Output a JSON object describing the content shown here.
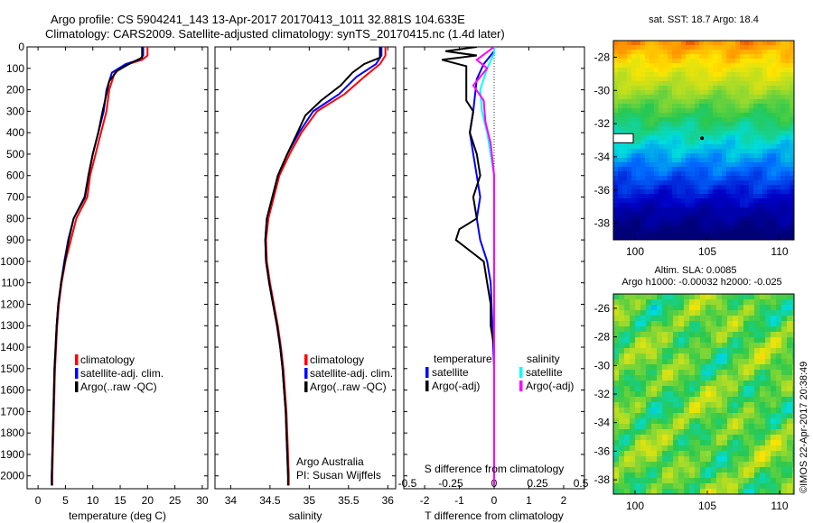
{
  "header": {
    "line1": "Argo profile: CS 5904241_143 13-Apr-2017 20170413_1011 32.881S 104.633E",
    "line2": "Climatology: CARS2009. Satellite-adjusted climatology: synTS_20170415.nc (1.4d later)"
  },
  "footer_credit": "©IMOS 22-Apr-2017 20:38:49",
  "colors": {
    "climatology": "#ff0000",
    "satellite": "#0000ff",
    "argo": "#000000",
    "sal_satellite": "#00ffff",
    "sal_argo": "#ff00ff"
  },
  "chart_data": [
    {
      "type": "line",
      "panel": "temperature",
      "xlabel": "temperature (deg C)",
      "ylabel": "",
      "xlim": [
        -2,
        31
      ],
      "ylim": [
        2060,
        0
      ],
      "xticks": [
        0,
        5,
        10,
        15,
        20,
        25,
        30
      ],
      "yticks": [
        0,
        100,
        200,
        300,
        400,
        500,
        600,
        700,
        800,
        900,
        1000,
        1100,
        1200,
        1300,
        1400,
        1500,
        1600,
        1700,
        1800,
        1900,
        2000
      ],
      "legend": [
        "climatology",
        "satellite-adj. clim.",
        "Argo(..raw -QC)"
      ],
      "series": [
        {
          "name": "climatology",
          "color": "#ff0000",
          "points": [
            [
              20,
              0
            ],
            [
              20,
              40
            ],
            [
              19,
              60
            ],
            [
              16.5,
              80
            ],
            [
              14,
              120
            ],
            [
              13,
              200
            ],
            [
              12.5,
              300
            ],
            [
              11.5,
              400
            ],
            [
              10.5,
              500
            ],
            [
              9.5,
              600
            ],
            [
              9,
              700
            ],
            [
              7,
              800
            ],
            [
              6,
              900
            ],
            [
              5,
              1000
            ],
            [
              4.3,
              1100
            ],
            [
              3.8,
              1200
            ],
            [
              3.5,
              1300
            ],
            [
              3.3,
              1400
            ],
            [
              3.1,
              1500
            ],
            [
              3,
              1600
            ],
            [
              2.9,
              1700
            ],
            [
              2.8,
              1800
            ],
            [
              2.7,
              1900
            ],
            [
              2.6,
              2000
            ],
            [
              2.6,
              2045
            ]
          ]
        },
        {
          "name": "satellite-adj. clim.",
          "color": "#0000ff",
          "points": [
            [
              19.2,
              0
            ],
            [
              19.2,
              40
            ],
            [
              18.5,
              60
            ],
            [
              16,
              80
            ],
            [
              13.5,
              120
            ],
            [
              12.5,
              200
            ],
            [
              12,
              300
            ],
            [
              11,
              400
            ],
            [
              10,
              500
            ],
            [
              9.2,
              600
            ],
            [
              8.5,
              700
            ],
            [
              6.5,
              800
            ],
            [
              5.5,
              900
            ],
            [
              4.8,
              1000
            ],
            [
              4.2,
              1100
            ],
            [
              3.7,
              1200
            ],
            [
              3.4,
              1300
            ],
            [
              3.2,
              1400
            ],
            [
              3,
              1500
            ],
            [
              2.9,
              1600
            ],
            [
              2.8,
              1700
            ],
            [
              2.7,
              1800
            ],
            [
              2.6,
              1900
            ],
            [
              2.5,
              2000
            ],
            [
              2.5,
              2045
            ]
          ]
        },
        {
          "name": "Argo(..raw -QC)",
          "color": "#000000",
          "points": [
            [
              19,
              0
            ],
            [
              19,
              50
            ],
            [
              17,
              75
            ],
            [
              14.5,
              110
            ],
            [
              13,
              160
            ],
            [
              12.5,
              220
            ],
            [
              11.8,
              300
            ],
            [
              11,
              400
            ],
            [
              10,
              500
            ],
            [
              9.2,
              600
            ],
            [
              8.6,
              700
            ],
            [
              6.5,
              800
            ],
            [
              5.6,
              900
            ],
            [
              4.9,
              1000
            ],
            [
              4.2,
              1100
            ],
            [
              3.7,
              1200
            ],
            [
              3.4,
              1300
            ],
            [
              3.2,
              1400
            ],
            [
              3,
              1500
            ],
            [
              2.9,
              1600
            ],
            [
              2.8,
              1700
            ],
            [
              2.7,
              1800
            ],
            [
              2.6,
              1900
            ],
            [
              2.5,
              2000
            ],
            [
              2.5,
              2045
            ]
          ]
        }
      ]
    },
    {
      "type": "line",
      "panel": "salinity",
      "xlabel": "salinity",
      "xlim": [
        33.8,
        36.1
      ],
      "ylim": [
        2060,
        0
      ],
      "xticks": [
        34,
        34.5,
        35,
        35.5,
        36
      ],
      "xticklabels": [
        "34",
        "34.5",
        "35",
        "35.5",
        "36"
      ],
      "legend": [
        "climatology",
        "satellite-adj. clim.",
        "Argo(..raw -QC)"
      ],
      "annotation": [
        "Argo Australia",
        "PI: Susan Wijffels"
      ],
      "series": [
        {
          "name": "climatology",
          "color": "#ff0000",
          "points": [
            [
              35.97,
              0
            ],
            [
              35.97,
              40
            ],
            [
              35.9,
              80
            ],
            [
              35.7,
              140
            ],
            [
              35.45,
              220
            ],
            [
              35.1,
              300
            ],
            [
              34.9,
              400
            ],
            [
              34.75,
              500
            ],
            [
              34.62,
              600
            ],
            [
              34.55,
              700
            ],
            [
              34.48,
              800
            ],
            [
              34.45,
              900
            ],
            [
              34.46,
              1000
            ],
            [
              34.5,
              1100
            ],
            [
              34.55,
              1200
            ],
            [
              34.6,
              1300
            ],
            [
              34.64,
              1400
            ],
            [
              34.67,
              1500
            ],
            [
              34.69,
              1600
            ],
            [
              34.71,
              1700
            ],
            [
              34.72,
              1800
            ],
            [
              34.73,
              1900
            ],
            [
              34.74,
              2000
            ],
            [
              34.74,
              2045
            ]
          ]
        },
        {
          "name": "satellite-adj. clim.",
          "color": "#0000ff",
          "points": [
            [
              35.92,
              0
            ],
            [
              35.92,
              40
            ],
            [
              35.85,
              80
            ],
            [
              35.6,
              140
            ],
            [
              35.38,
              220
            ],
            [
              35.05,
              300
            ],
            [
              34.87,
              400
            ],
            [
              34.72,
              500
            ],
            [
              34.6,
              600
            ],
            [
              34.53,
              700
            ],
            [
              34.46,
              800
            ],
            [
              34.44,
              900
            ],
            [
              34.45,
              1000
            ],
            [
              34.49,
              1100
            ],
            [
              34.54,
              1200
            ],
            [
              34.59,
              1300
            ],
            [
              34.63,
              1400
            ],
            [
              34.66,
              1500
            ],
            [
              34.68,
              1600
            ],
            [
              34.7,
              1700
            ],
            [
              34.71,
              1800
            ],
            [
              34.72,
              1900
            ],
            [
              34.73,
              2000
            ],
            [
              34.73,
              2045
            ]
          ]
        },
        {
          "name": "Argo(..raw -QC)",
          "color": "#000000",
          "points": [
            [
              35.9,
              0
            ],
            [
              35.9,
              50
            ],
            [
              35.7,
              80
            ],
            [
              35.55,
              120
            ],
            [
              35.4,
              180
            ],
            [
              35.15,
              250
            ],
            [
              34.95,
              320
            ],
            [
              34.85,
              400
            ],
            [
              34.72,
              500
            ],
            [
              34.6,
              600
            ],
            [
              34.53,
              700
            ],
            [
              34.46,
              800
            ],
            [
              34.44,
              900
            ],
            [
              34.45,
              1000
            ],
            [
              34.49,
              1100
            ],
            [
              34.54,
              1200
            ],
            [
              34.59,
              1300
            ],
            [
              34.63,
              1400
            ],
            [
              34.66,
              1500
            ],
            [
              34.68,
              1600
            ],
            [
              34.7,
              1700
            ],
            [
              34.71,
              1800
            ],
            [
              34.72,
              1900
            ],
            [
              34.73,
              2000
            ],
            [
              34.73,
              2045
            ]
          ]
        }
      ]
    },
    {
      "type": "line",
      "panel": "difference",
      "xlabel": "T difference from climatology",
      "xlabel_top": "S difference from climatology",
      "xlim": [
        -2.6,
        2.6
      ],
      "ylim": [
        2060,
        0
      ],
      "xticks": [
        -2,
        -1,
        0,
        1,
        2
      ],
      "xticks_top": [
        -0.5,
        -0.25,
        0,
        0.25,
        0.5
      ],
      "legend_left_title": "temperature",
      "legend_right_title": "salinity",
      "legend": [
        "satellite",
        "Argo(-adj)",
        "satellite",
        "Argo(-adj)"
      ],
      "series": [
        {
          "name": "satellite",
          "group": "temperature",
          "color": "#0000ff",
          "points": [
            [
              0,
              0
            ],
            [
              0,
              20
            ],
            [
              -0.3,
              80
            ],
            [
              -0.5,
              150
            ],
            [
              -0.6,
              300
            ],
            [
              -0.7,
              400
            ],
            [
              -0.6,
              500
            ],
            [
              -0.5,
              600
            ],
            [
              -0.4,
              700
            ],
            [
              -0.5,
              800
            ],
            [
              -0.4,
              900
            ],
            [
              -0.2,
              1000
            ],
            [
              -0.1,
              1100
            ],
            [
              -0.05,
              1300
            ],
            [
              0,
              1500
            ],
            [
              0,
              2045
            ]
          ]
        },
        {
          "name": "Argo(-adj)",
          "group": "temperature",
          "color": "#000000",
          "points": [
            [
              -0.5,
              0
            ],
            [
              -1.4,
              20
            ],
            [
              -0.5,
              40
            ],
            [
              -1.5,
              60
            ],
            [
              -0.8,
              90
            ],
            [
              -0.8,
              150
            ],
            [
              -0.8,
              250
            ],
            [
              -0.6,
              300
            ],
            [
              -0.7,
              400
            ],
            [
              -0.5,
              500
            ],
            [
              -0.4,
              600
            ],
            [
              -0.6,
              700
            ],
            [
              -0.5,
              800
            ],
            [
              -1,
              850
            ],
            [
              -1.1,
              900
            ],
            [
              -0.7,
              950
            ],
            [
              -0.3,
              1000
            ],
            [
              -0.2,
              1100
            ],
            [
              -0.1,
              1200
            ],
            [
              -0.1,
              1300
            ],
            [
              0,
              1400
            ],
            [
              0,
              2045
            ]
          ]
        },
        {
          "name": "satellite",
          "group": "salinity",
          "color": "#00ffff",
          "points": [
            [
              0,
              0
            ],
            [
              0,
              30
            ],
            [
              -0.2,
              100
            ],
            [
              -0.4,
              200
            ],
            [
              -0.35,
              300
            ],
            [
              -0.2,
              400
            ],
            [
              -0.1,
              500
            ],
            [
              0,
              600
            ],
            [
              0,
              2045
            ]
          ]
        },
        {
          "name": "Argo(-adj)",
          "group": "salinity",
          "color": "#ff00ff",
          "points": [
            [
              0,
              0
            ],
            [
              -0.5,
              60
            ],
            [
              -0.2,
              100
            ],
            [
              -0.6,
              180
            ],
            [
              -0.3,
              250
            ],
            [
              -0.25,
              350
            ],
            [
              -0.1,
              450
            ],
            [
              0,
              600
            ],
            [
              0,
              2045
            ]
          ]
        }
      ]
    },
    {
      "type": "heatmap",
      "panel": "sst-map",
      "title": "sat. SST: 18.7 Argo: 18.4",
      "xlim": [
        98.5,
        111
      ],
      "ylim": [
        -39,
        -27
      ],
      "xticks": [
        100,
        105,
        110
      ],
      "yticks": [
        -28,
        -30,
        -32,
        -34,
        -36,
        -38
      ],
      "profile_position": [
        104.633,
        -32.881
      ]
    },
    {
      "type": "heatmap",
      "panel": "sla-map",
      "title": "Altim. SLA: 0.0085",
      "subtitle": "Argo h1000: -0.00032 h2000: -0.025",
      "xlim": [
        98.5,
        111
      ],
      "ylim": [
        -39,
        -25
      ],
      "xticks": [
        100,
        105,
        110
      ],
      "yticks": [
        -26,
        -28,
        -30,
        -32,
        -34,
        -36,
        -38
      ]
    }
  ]
}
